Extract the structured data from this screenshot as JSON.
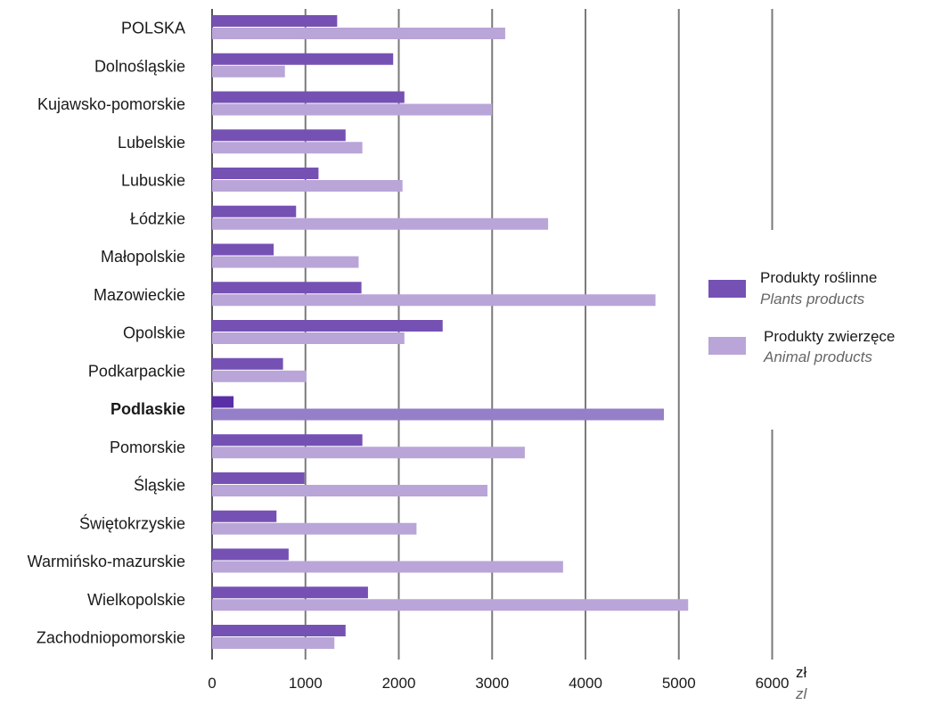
{
  "chart_data": {
    "type": "bar",
    "orientation": "horizontal",
    "categories": [
      "POLSKA",
      "Dolnośląskie",
      "Kujawsko-pomorskie",
      "Lubelskie",
      "Lubuskie",
      "Łódzkie",
      "Małopolskie",
      "Mazowieckie",
      "Opolskie",
      "Podkarpackie",
      "Podlaskie",
      "Pomorskie",
      "Śląskie",
      "Świętokrzyskie",
      "Warmińsko-mazurskie",
      "Wielkopolskie",
      "Zachodniopomorskie"
    ],
    "highlight_category": "Podlaskie",
    "series": [
      {
        "name": "Produkty roślinne",
        "name_en": "Plants products",
        "color": "#7651b4",
        "highlight_color": "#5a2ea6",
        "values": [
          1340,
          1940,
          2060,
          1430,
          1140,
          900,
          660,
          1600,
          2470,
          760,
          230,
          1610,
          990,
          690,
          820,
          1670,
          1430
        ]
      },
      {
        "name": "Produkty zwierzęce",
        "name_en": "Animal products",
        "color": "#b9a5d8",
        "highlight_color": "#957fc8",
        "values": [
          3140,
          780,
          3000,
          1610,
          2040,
          3600,
          1570,
          4750,
          2060,
          1010,
          4840,
          3350,
          2950,
          2190,
          3760,
          5100,
          1310
        ]
      }
    ],
    "xlim": [
      0,
      6000
    ],
    "x_ticks": [
      "0",
      "1000",
      "2000",
      "3000",
      "4000",
      "5000",
      "6000"
    ],
    "unit": "zł",
    "unit_en": "zl",
    "grid": true,
    "legend_position": "right"
  }
}
